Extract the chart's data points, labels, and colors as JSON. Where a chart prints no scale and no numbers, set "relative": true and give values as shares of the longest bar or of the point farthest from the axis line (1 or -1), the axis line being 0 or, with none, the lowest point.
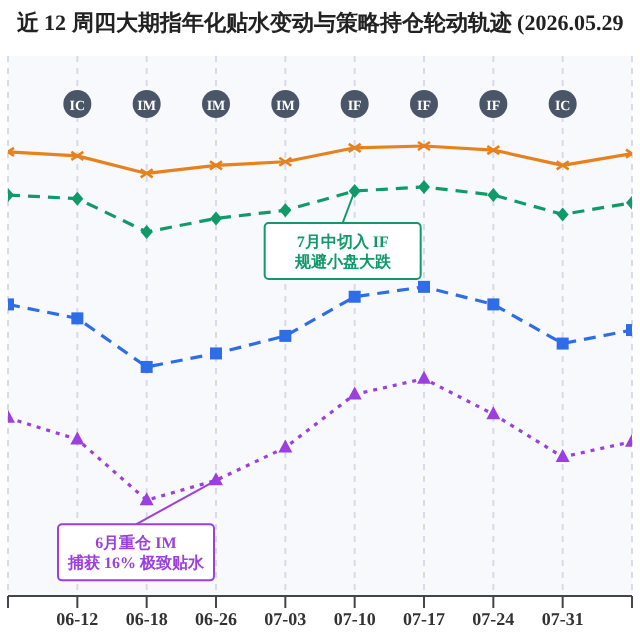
{
  "chart_data": {
    "type": "line",
    "title": "近 12 周四大期指年化贴水变动与策略持仓轮动轨迹 (2026.05.29",
    "relative": true,
    "grid": "x",
    "legend": false,
    "categories": [
      null,
      "06-12",
      "06-18",
      "06-26",
      "07-03",
      "07-10",
      "07-17",
      "07-24",
      "07-31",
      null
    ],
    "series": [
      {
        "color": "#e6821e",
        "marker": "cross",
        "line_style": "solid",
        "values": [
          0.987,
          0.978,
          0.939,
          0.957,
          0.965,
          0.996,
          1,
          0.991,
          0.957,
          0.983
        ]
      },
      {
        "color": "#109a6a",
        "marker": "diamond",
        "line_style": "dashed",
        "values": [
          0.891,
          0.883,
          0.809,
          0.839,
          0.857,
          0.9,
          0.909,
          0.891,
          0.848,
          0.874
        ]
      },
      {
        "color": "#2f6de6",
        "marker": "square",
        "line_style": "dashed",
        "values": [
          0.648,
          0.617,
          0.509,
          0.539,
          0.578,
          0.665,
          0.687,
          0.648,
          0.561,
          0.591
        ]
      },
      {
        "color": "#9b3fe0",
        "marker": "triangle",
        "line_style": "dotted",
        "values": [
          0.396,
          0.348,
          0.213,
          0.257,
          0.33,
          0.448,
          0.483,
          0.404,
          0.309,
          0.343
        ]
      }
    ],
    "annotations": [
      "IC",
      "IM",
      "IM",
      "IM",
      "IF",
      "IF",
      "IF",
      "IC",
      {
        "text": "7月中切入 IF\n规避小盘大跌",
        "x": "07-10",
        "y": 0.9
      },
      {
        "text": "6月重仓 IM\n捕获 16% 极致贴水",
        "x": "06-26",
        "y": 0.257
      }
    ]
  }
}
